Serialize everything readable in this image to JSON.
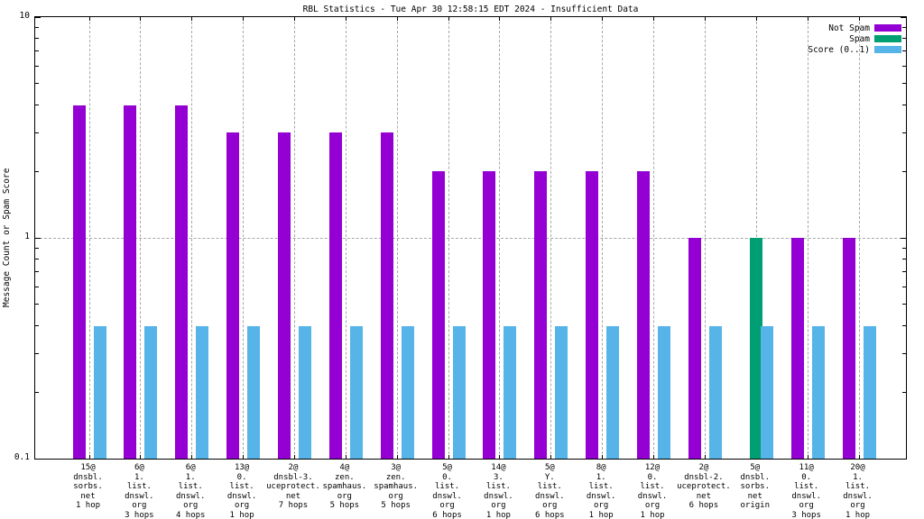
{
  "title": "RBL Statistics - Tue Apr 30 12:58:15 EDT 2024 - Insufficient Data",
  "chart_data": {
    "type": "bar",
    "title": "RBL Statistics - Tue Apr 30 12:58:15 EDT 2024 - Insufficient Data",
    "xlabel": "",
    "ylabel": "Message Count or Spam Score",
    "yscale": "log",
    "ylim": [
      0.1,
      10
    ],
    "ytick_labels": [
      "0.1",
      "1",
      "10"
    ],
    "grid": true,
    "grid_color": "#a8a8a8",
    "legend_position": "top-right",
    "categories": [
      [
        "15@",
        "dnsbl.",
        "sorbs.",
        "net",
        "1 hop"
      ],
      [
        "6@",
        "1.",
        "list.",
        "dnswl.",
        "org",
        "3 hops"
      ],
      [
        "6@",
        "1.",
        "list.",
        "dnswl.",
        "org",
        "4 hops"
      ],
      [
        "13@",
        "0.",
        "list.",
        "dnswl.",
        "org",
        "1 hop"
      ],
      [
        "2@",
        "dnsbl-3.",
        "uceprotect.",
        "net",
        "7 hops"
      ],
      [
        "4@",
        "zen.",
        "spamhaus.",
        "org",
        "5 hops"
      ],
      [
        "3@",
        "zen.",
        "spamhaus.",
        "org",
        "5 hops"
      ],
      [
        "5@",
        "0.",
        "list.",
        "dnswl.",
        "org",
        "6 hops"
      ],
      [
        "14@",
        "3.",
        "list.",
        "dnswl.",
        "org",
        "1 hop"
      ],
      [
        "5@",
        "Y.",
        "list.",
        "dnswl.",
        "org",
        "6 hops"
      ],
      [
        "8@",
        "1.",
        "list.",
        "dnswl.",
        "org",
        "1 hop"
      ],
      [
        "12@",
        "0.",
        "list.",
        "dnswl.",
        "org",
        "1 hop"
      ],
      [
        "2@",
        "dnsbl-2.",
        "uceprotect.",
        "net",
        "6 hops"
      ],
      [
        "5@",
        "dnsbl.",
        "sorbs.",
        "net",
        "origin"
      ],
      [
        "11@",
        "0.",
        "list.",
        "dnswl.",
        "org",
        "3 hops"
      ],
      [
        "20@",
        "1.",
        "list.",
        "dnswl.",
        "org",
        "1 hop"
      ]
    ],
    "series": [
      {
        "name": "Not Spam",
        "color": "#9400d3",
        "values": [
          4,
          4,
          4,
          3,
          3,
          3,
          3,
          2,
          2,
          2,
          2,
          2,
          1,
          0,
          1,
          1
        ]
      },
      {
        "name": "Spam",
        "color": "#009e73",
        "values": [
          0,
          0,
          0,
          0,
          0,
          0,
          0,
          0,
          0,
          0,
          0,
          0,
          0,
          1,
          0,
          0
        ]
      },
      {
        "name": "Score (0..1)",
        "color": "#56b4e9",
        "values": [
          0.4,
          0.4,
          0.4,
          0.4,
          0.4,
          0.4,
          0.4,
          0.4,
          0.4,
          0.4,
          0.4,
          0.4,
          0.4,
          0.4,
          0.4,
          0.4
        ]
      }
    ]
  }
}
